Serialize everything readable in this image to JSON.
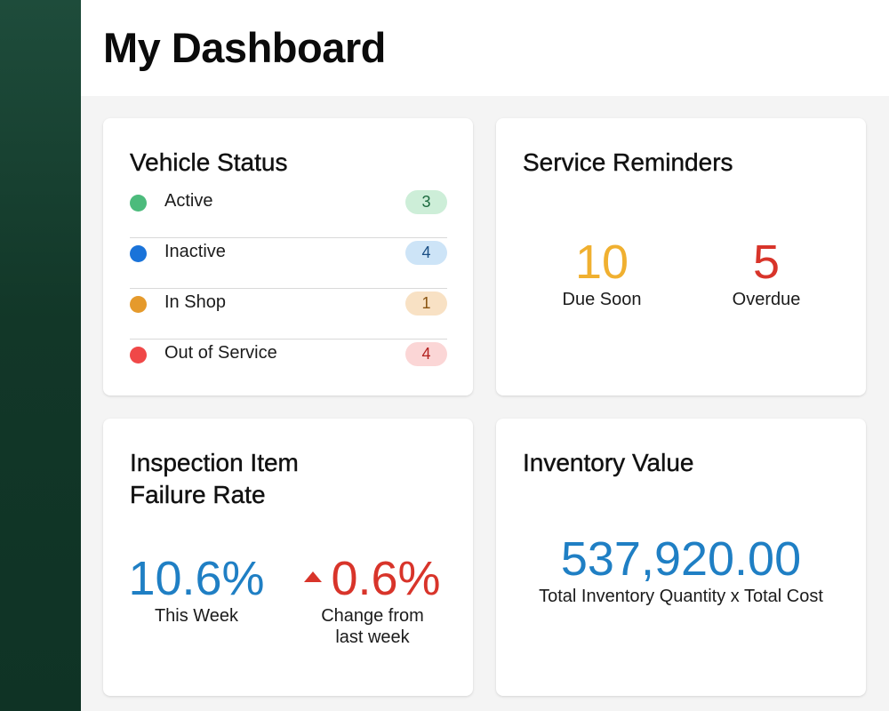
{
  "header": {
    "title": "My Dashboard"
  },
  "colors": {
    "sidebar": "#123728",
    "blue_value": "#1f7fc4",
    "orange_value": "#f0b030",
    "red_value": "#d8342a"
  },
  "vehicle_status": {
    "title": "Vehicle Status",
    "items": [
      {
        "label": "Active",
        "count": "3",
        "dot_color": "#4cbb7c",
        "badge_bg": "#cdeed8",
        "badge_fg": "#1b6a3e"
      },
      {
        "label": "Inactive",
        "count": "4",
        "dot_color": "#1a73d9",
        "badge_bg": "#cde4f7",
        "badge_fg": "#1a4f85"
      },
      {
        "label": "In Shop",
        "count": "1",
        "dot_color": "#e59a2c",
        "badge_bg": "#f8e1c4",
        "badge_fg": "#8a5412"
      },
      {
        "label": "Out of Service",
        "count": "4",
        "dot_color": "#f04848",
        "badge_bg": "#fbd6d6",
        "badge_fg": "#b3201f"
      }
    ]
  },
  "service_reminders": {
    "title": "Service Reminders",
    "due_soon": {
      "value": "10",
      "label": "Due Soon"
    },
    "overdue": {
      "value": "5",
      "label": "Overdue"
    }
  },
  "inspection": {
    "title_line1": "Inspection Item",
    "title_line2": "Failure Rate",
    "this_week": {
      "value": "10.6%",
      "label": "This Week"
    },
    "change": {
      "value": "0.6%",
      "label_line1": "Change from",
      "label_line2": "last week",
      "direction": "up"
    }
  },
  "inventory": {
    "title": "Inventory Value",
    "value": "537,920.00",
    "label": "Total Inventory Quantity x Total Cost"
  }
}
